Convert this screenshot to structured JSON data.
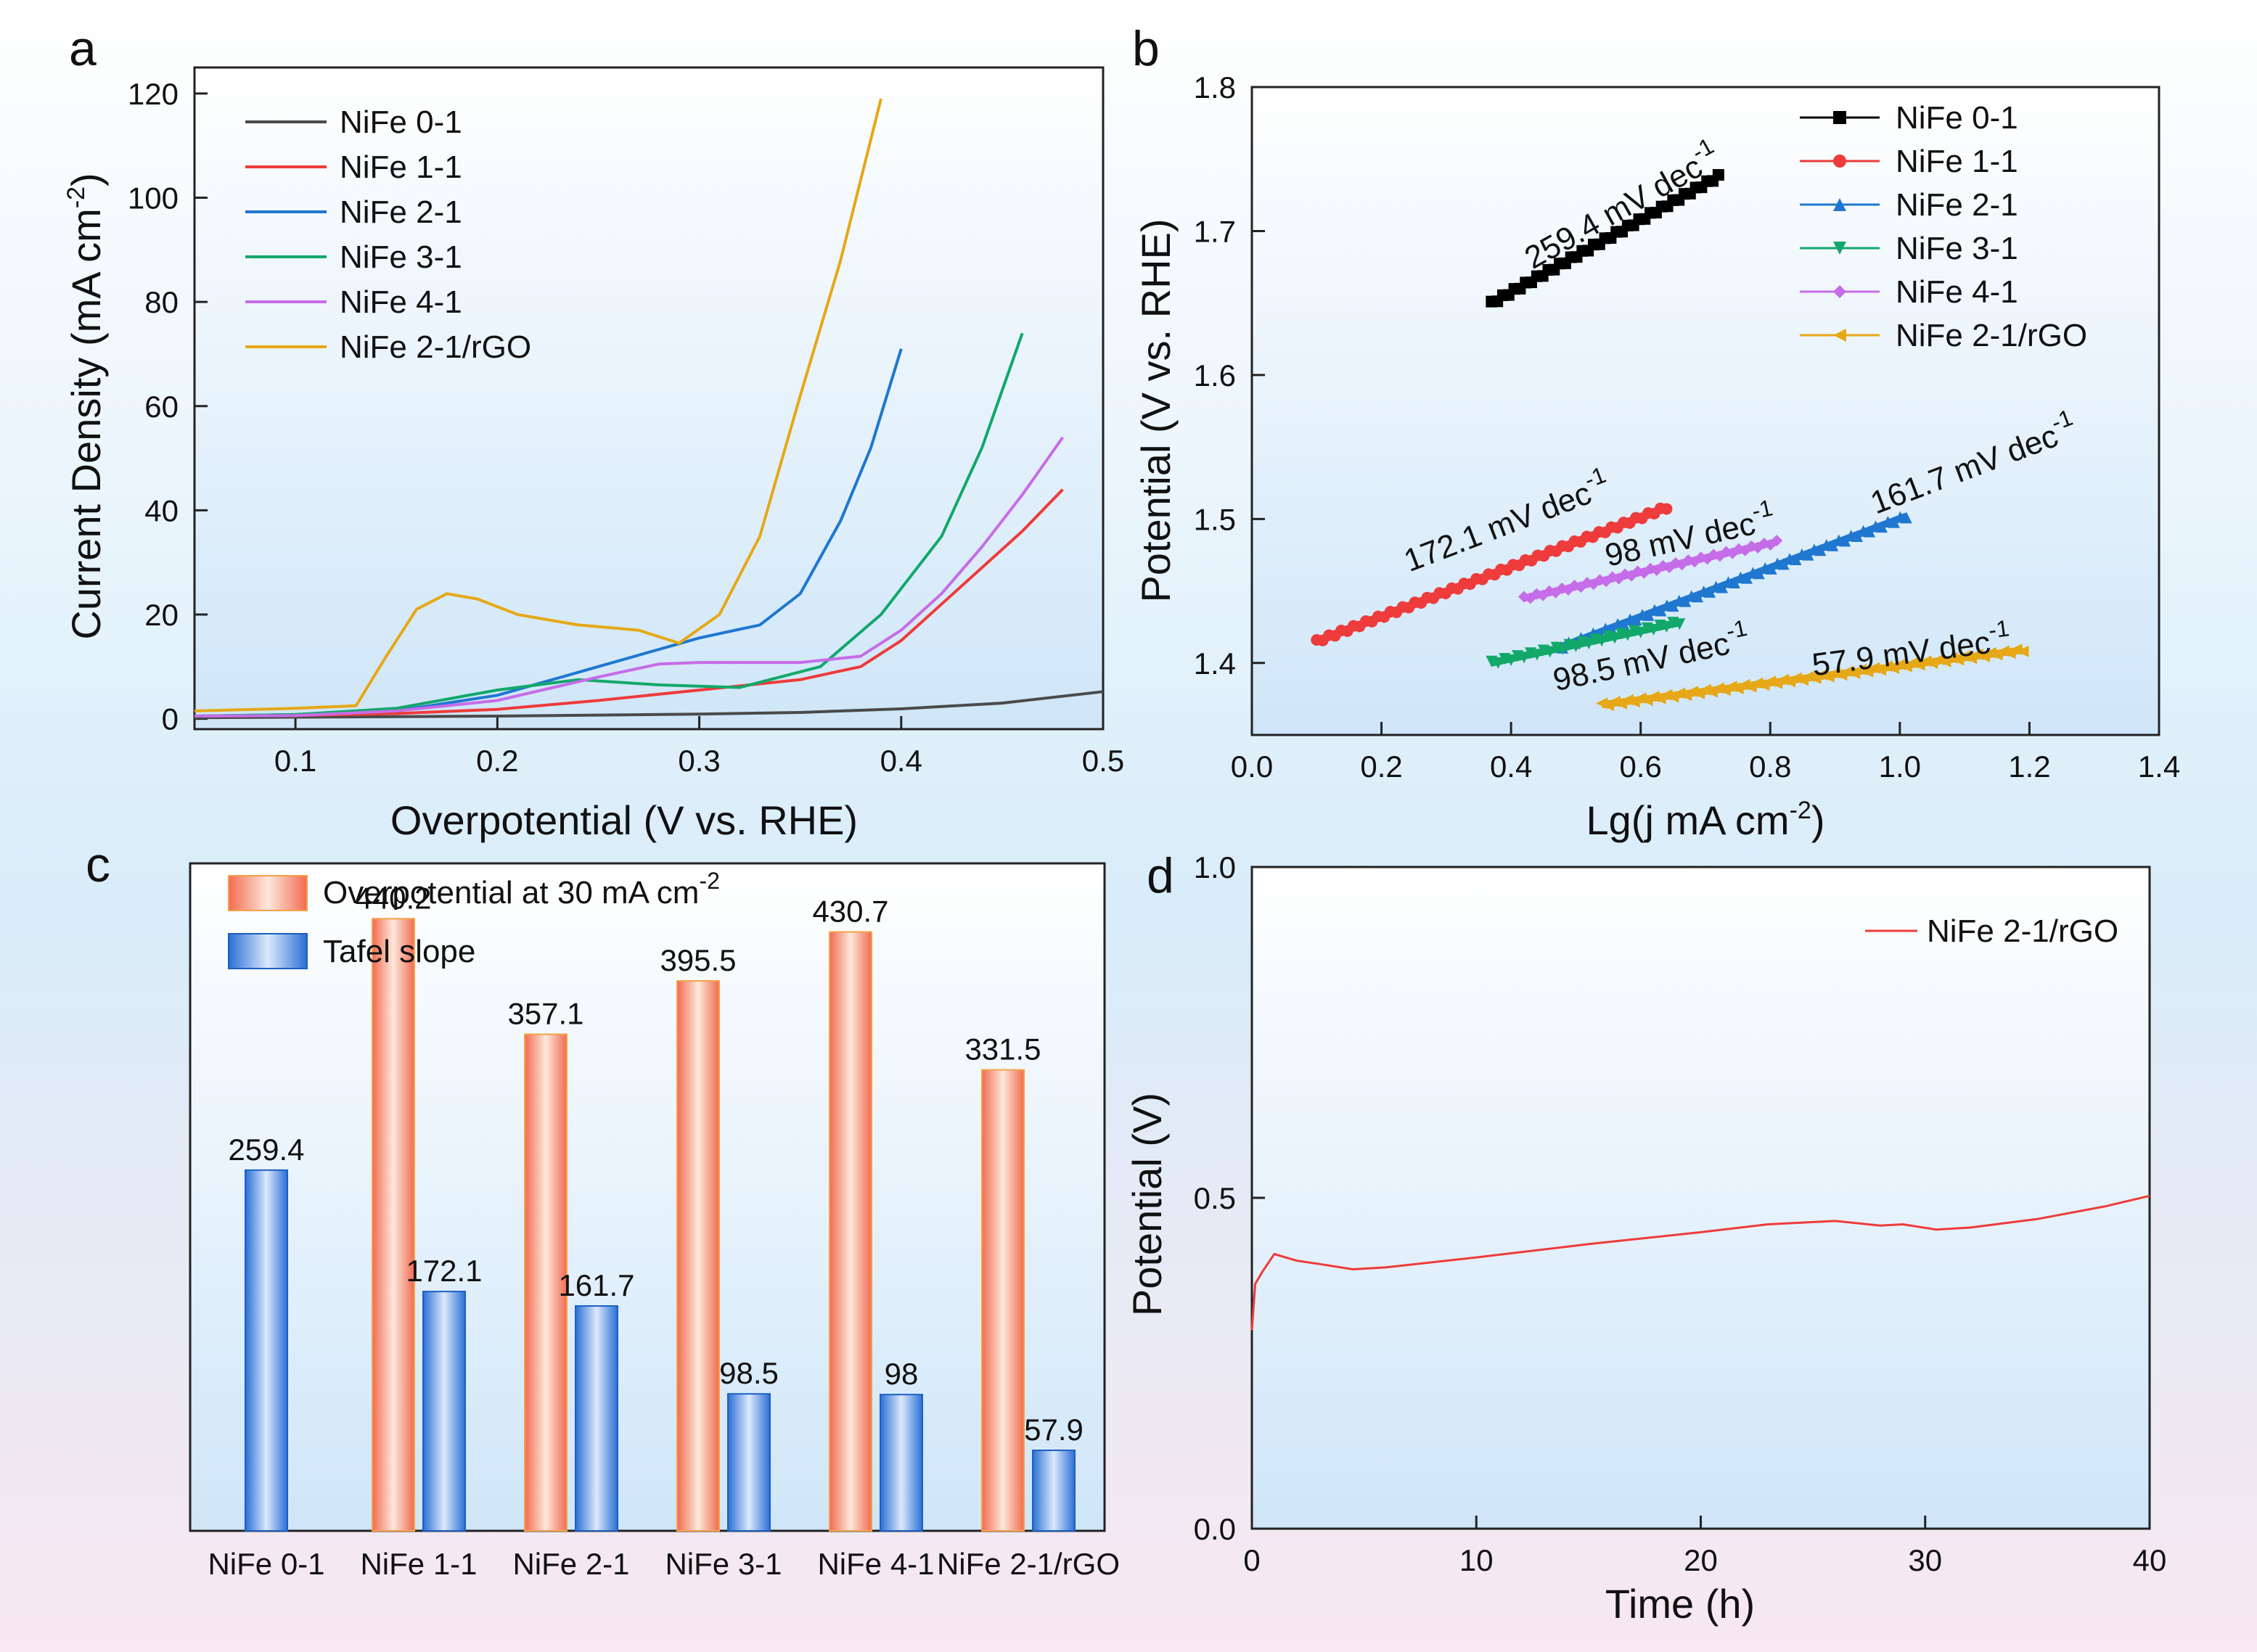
{
  "chart_data": [
    {
      "panel": "a",
      "type": "line",
      "xlabel": "Overpotential (V vs. RHE)",
      "ylabel": "Current Density (mA cm",
      "ylabel_sup": "-2",
      "ylabel_end": ")",
      "xlim": [
        0.05,
        0.5
      ],
      "ylim": [
        -2,
        125
      ],
      "xticks": [
        "0.1",
        "0.2",
        "0.3",
        "0.4",
        "0.5"
      ],
      "yticks": [
        "0",
        "20",
        "40",
        "60",
        "80",
        "100",
        "120"
      ],
      "series": [
        {
          "name": "NiFe 0-1",
          "color": "#4a4a4a",
          "points": [
            [
              0.05,
              0.2
            ],
            [
              0.1,
              0.3
            ],
            [
              0.2,
              0.5
            ],
            [
              0.3,
              0.9
            ],
            [
              0.35,
              1.2
            ],
            [
              0.4,
              1.9
            ],
            [
              0.45,
              3.0
            ],
            [
              0.5,
              5.2
            ]
          ]
        },
        {
          "name": "NiFe 1-1",
          "color": "#ee3b3b",
          "points": [
            [
              0.05,
              0.5
            ],
            [
              0.1,
              0.6
            ],
            [
              0.15,
              1.0
            ],
            [
              0.2,
              1.8
            ],
            [
              0.25,
              3.5
            ],
            [
              0.3,
              5.5
            ],
            [
              0.35,
              7.5
            ],
            [
              0.38,
              10
            ],
            [
              0.4,
              15
            ],
            [
              0.42,
              22
            ],
            [
              0.44,
              29
            ],
            [
              0.46,
              36
            ],
            [
              0.48,
              44
            ]
          ]
        },
        {
          "name": "NiFe 2-1",
          "color": "#1f77d0",
          "points": [
            [
              0.05,
              0.5
            ],
            [
              0.1,
              0.8
            ],
            [
              0.15,
              1.5
            ],
            [
              0.2,
              4.5
            ],
            [
              0.25,
              10
            ],
            [
              0.3,
              15.5
            ],
            [
              0.33,
              18
            ],
            [
              0.35,
              24
            ],
            [
              0.37,
              38
            ],
            [
              0.385,
              52
            ],
            [
              0.4,
              71
            ]
          ]
        },
        {
          "name": "NiFe 3-1",
          "color": "#12a86a",
          "points": [
            [
              0.05,
              0.5
            ],
            [
              0.1,
              0.8
            ],
            [
              0.15,
              2.0
            ],
            [
              0.2,
              5.5
            ],
            [
              0.24,
              7.5
            ],
            [
              0.28,
              6.5
            ],
            [
              0.32,
              6.0
            ],
            [
              0.36,
              10
            ],
            [
              0.39,
              20
            ],
            [
              0.42,
              35
            ],
            [
              0.44,
              52
            ],
            [
              0.46,
              74
            ]
          ]
        },
        {
          "name": "NiFe 4-1",
          "color": "#c66ce8",
          "points": [
            [
              0.05,
              0.5
            ],
            [
              0.1,
              0.6
            ],
            [
              0.15,
              1.5
            ],
            [
              0.2,
              3.5
            ],
            [
              0.25,
              8
            ],
            [
              0.28,
              10.5
            ],
            [
              0.3,
              10.8
            ],
            [
              0.35,
              10.8
            ],
            [
              0.38,
              12
            ],
            [
              0.4,
              17
            ],
            [
              0.42,
              24
            ],
            [
              0.44,
              33
            ],
            [
              0.46,
              43
            ],
            [
              0.48,
              54
            ]
          ]
        },
        {
          "name": "NiFe 2-1/rGO",
          "color": "#e6a817",
          "points": [
            [
              0.05,
              1.5
            ],
            [
              0.1,
              2.0
            ],
            [
              0.13,
              2.5
            ],
            [
              0.145,
              12
            ],
            [
              0.16,
              21
            ],
            [
              0.175,
              24
            ],
            [
              0.19,
              23
            ],
            [
              0.21,
              20
            ],
            [
              0.24,
              18
            ],
            [
              0.27,
              17
            ],
            [
              0.29,
              14.5
            ],
            [
              0.31,
              20
            ],
            [
              0.33,
              35
            ],
            [
              0.35,
              62
            ],
            [
              0.37,
              88
            ],
            [
              0.39,
              119
            ]
          ]
        }
      ]
    },
    {
      "panel": "b",
      "type": "scatter",
      "xlabel": "Lg(j mA cm",
      "xlabel_sup": "-2",
      "xlabel_end": ")",
      "ylabel": "Potential (V vs. RHE)",
      "xlim": [
        0.0,
        1.4
      ],
      "ylim": [
        1.35,
        1.8
      ],
      "xticks": [
        "0.0",
        "0.2",
        "0.4",
        "0.6",
        "0.8",
        "1.0",
        "1.2",
        "1.4"
      ],
      "yticks": [
        "1.4",
        "1.5",
        "1.6",
        "1.7",
        "1.8"
      ],
      "series": [
        {
          "name": "NiFe 0-1",
          "color": "#000000",
          "marker": "square",
          "x0": 0.37,
          "y0": 1.65,
          "x1": 0.72,
          "y1": 1.738,
          "label": "259.4 mV dec",
          "label_sup": "-1",
          "label_x": 0.58,
          "label_y": 1.71
        },
        {
          "name": "NiFe 1-1",
          "color": "#ee3b3b",
          "marker": "circle",
          "x0": 0.1,
          "y0": 1.415,
          "x1": 0.64,
          "y1": 1.508,
          "label": "172.1 mV dec",
          "label_sup": "-1",
          "label_x": 0.4,
          "label_y": 1.49
        },
        {
          "name": "NiFe 2-1",
          "color": "#1f77d0",
          "marker": "triangle-up",
          "x0": 0.47,
          "y0": 1.41,
          "x1": 1.01,
          "y1": 1.502,
          "label": "161.7 mV dec",
          "label_sup": "-1",
          "label_x": 1.12,
          "label_y": 1.53
        },
        {
          "name": "NiFe 3-1",
          "color": "#12a86a",
          "marker": "triangle-down",
          "x0": 0.37,
          "y0": 1.4,
          "x1": 0.66,
          "y1": 1.428,
          "label": "98.5 mV dec",
          "label_sup": "-1",
          "label_x": 0.62,
          "label_y": 1.395
        },
        {
          "name": "NiFe 4-1",
          "color": "#c66ce8",
          "marker": "diamond",
          "x0": 0.42,
          "y0": 1.445,
          "x1": 0.81,
          "y1": 1.484,
          "label": "98 mV dec",
          "label_sup": "-1",
          "label_x": 0.68,
          "label_y": 1.48
        },
        {
          "name": "NiFe 2-1/rGO",
          "color": "#e6a817",
          "marker": "triangle-left",
          "x0": 0.54,
          "y0": 1.371,
          "x1": 1.19,
          "y1": 1.409,
          "label": "57.9 mV dec",
          "label_sup": "-1",
          "label_x": 1.02,
          "label_y": 1.4
        }
      ]
    },
    {
      "panel": "c",
      "type": "bar",
      "categories": [
        "NiFe 0-1",
        "NiFe 1-1",
        "NiFe 2-1",
        "NiFe 3-1",
        "NiFe 4-1",
        "NiFe 2-1/rGO"
      ],
      "ylim": [
        0,
        480
      ],
      "series": [
        {
          "name": "Overpotential at 30 mA cm",
          "name_sup": "-2",
          "color": "#f26b50",
          "values": [
            null,
            440.2,
            357.1,
            395.5,
            430.7,
            331.5
          ],
          "labels": [
            "",
            "440.2",
            "357.1",
            "395.5",
            "430.7",
            "331.5"
          ]
        },
        {
          "name": "Tafel slope",
          "color": "#2a6fd6",
          "values": [
            259.4,
            172.1,
            161.7,
            98.5,
            98,
            57.9
          ],
          "labels": [
            "259.4",
            "172.1",
            "161.7",
            "98.5",
            "98",
            "57.9"
          ]
        }
      ]
    },
    {
      "panel": "d",
      "type": "line",
      "xlabel": "Time (h)",
      "ylabel": "Potential (V)",
      "xlim": [
        0,
        40
      ],
      "ylim": [
        0,
        1.0
      ],
      "xticks": [
        "0",
        "10",
        "20",
        "30",
        "40"
      ],
      "yticks": [
        "0.0",
        "0.5",
        "1.0"
      ],
      "series": [
        {
          "name": "NiFe 2-1/rGO",
          "color": "#ee3b3b",
          "points": [
            [
              0,
              0.3
            ],
            [
              0.15,
              0.37
            ],
            [
              0.5,
              0.39
            ],
            [
              1,
              0.415
            ],
            [
              2,
              0.405
            ],
            [
              3,
              0.4
            ],
            [
              4.5,
              0.392
            ],
            [
              6,
              0.395
            ],
            [
              10,
              0.41
            ],
            [
              15,
              0.43
            ],
            [
              20,
              0.448
            ],
            [
              23,
              0.46
            ],
            [
              26,
              0.465
            ],
            [
              28,
              0.458
            ],
            [
              29,
              0.46
            ],
            [
              30.5,
              0.452
            ],
            [
              32,
              0.455
            ],
            [
              35,
              0.468
            ],
            [
              38,
              0.487
            ],
            [
              40,
              0.503
            ]
          ]
        }
      ]
    }
  ]
}
